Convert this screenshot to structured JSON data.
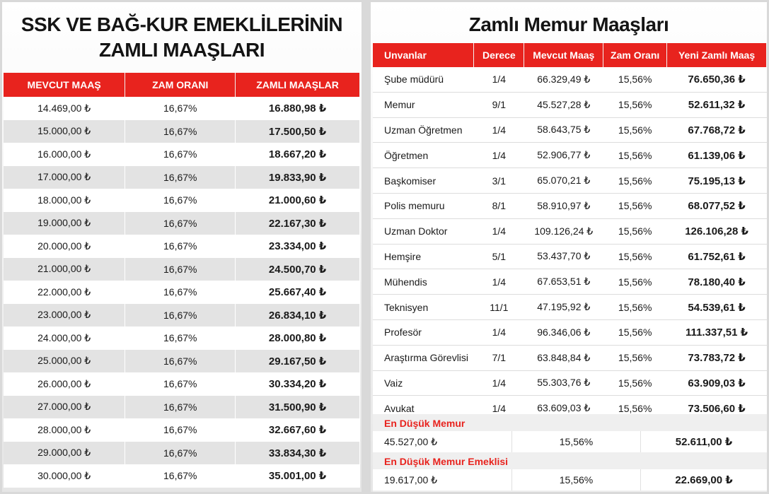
{
  "left": {
    "title_line1": "SSK VE BAĞ-KUR EMEKLİLERİNİN",
    "title_line2": "ZAMLI MAAŞLARI",
    "headers": [
      "MEVCUT MAAŞ",
      "ZAM ORANI",
      "ZAMLI MAAŞLAR"
    ],
    "rows": [
      [
        "14.469,00 ₺",
        "16,67%",
        "16.880,98 ₺"
      ],
      [
        "15.000,00 ₺",
        "16,67%",
        "17.500,50 ₺"
      ],
      [
        "16.000,00 ₺",
        "16,67%",
        "18.667,20 ₺"
      ],
      [
        "17.000,00 ₺",
        "16,67%",
        "19.833,90 ₺"
      ],
      [
        "18.000,00 ₺",
        "16,67%",
        "21.000,60 ₺"
      ],
      [
        "19.000,00 ₺",
        "16,67%",
        "22.167,30 ₺"
      ],
      [
        "20.000,00 ₺",
        "16,67%",
        "23.334,00 ₺"
      ],
      [
        "21.000,00 ₺",
        "16,67%",
        "24.500,70 ₺"
      ],
      [
        "22.000,00 ₺",
        "16,67%",
        "25.667,40 ₺"
      ],
      [
        "23.000,00 ₺",
        "16,67%",
        "26.834,10 ₺"
      ],
      [
        "24.000,00 ₺",
        "16,67%",
        "28.000,80 ₺"
      ],
      [
        "25.000,00 ₺",
        "16,67%",
        "29.167,50 ₺"
      ],
      [
        "26.000,00 ₺",
        "16,67%",
        "30.334,20 ₺"
      ],
      [
        "27.000,00 ₺",
        "16,67%",
        "31.500,90 ₺"
      ],
      [
        "28.000,00 ₺",
        "16,67%",
        "32.667,60 ₺"
      ],
      [
        "29.000,00 ₺",
        "16,67%",
        "33.834,30 ₺"
      ],
      [
        "30.000,00 ₺",
        "16,67%",
        "35.001,00 ₺"
      ]
    ]
  },
  "right": {
    "title": "Zamlı Memur Maaşları",
    "headers": [
      "Unvanlar",
      "Derece",
      "Mevcut Maaş",
      "Zam Oranı",
      "Yeni Zamlı Maaş"
    ],
    "rows": [
      [
        "Şube müdürü",
        "1/4",
        "66.329,49 ₺",
        "15,56%",
        "76.650,36 ₺"
      ],
      [
        "Memur",
        "9/1",
        "45.527,28 ₺",
        "15,56%",
        "52.611,32 ₺"
      ],
      [
        "Uzman Öğretmen",
        "1/4",
        "58.643,75 ₺",
        "15,56%",
        "67.768,72 ₺"
      ],
      [
        "Öğretmen",
        "1/4",
        "52.906,77 ₺",
        "15,56%",
        "61.139,06 ₺"
      ],
      [
        "Başkomiser",
        "3/1",
        "65.070,21 ₺",
        "15,56%",
        "75.195,13 ₺"
      ],
      [
        "Polis memuru",
        "8/1",
        "58.910,97 ₺",
        "15,56%",
        "68.077,52 ₺"
      ],
      [
        "Uzman Doktor",
        "1/4",
        "109.126,24 ₺",
        "15,56%",
        "126.106,28 ₺"
      ],
      [
        "Hemşire",
        "5/1",
        "53.437,70 ₺",
        "15,56%",
        "61.752,61 ₺"
      ],
      [
        "Mühendis",
        "1/4",
        "67.653,51 ₺",
        "15,56%",
        "78.180,40 ₺"
      ],
      [
        "Teknisyen",
        "11/1",
        "47.195,92 ₺",
        "15,56%",
        "54.539,61 ₺"
      ],
      [
        "Profesör",
        "1/4",
        "96.346,06 ₺",
        "15,56%",
        "111.337,51 ₺"
      ],
      [
        "Araştırma Görevlisi",
        "7/1",
        "63.848,84 ₺",
        "15,56%",
        "73.783,72 ₺"
      ],
      [
        "Vaiz",
        "1/4",
        "55.303,76 ₺",
        "15,56%",
        "63.909,03 ₺"
      ],
      [
        "Avukat",
        "1/4",
        "63.609,03 ₺",
        "15,56%",
        "73.506,60 ₺"
      ]
    ],
    "lowest_memur": {
      "label": "En Düşük Memur",
      "current": "45.527,00 ₺",
      "rate": "15,56%",
      "new": "52.611,00 ₺"
    },
    "lowest_retired": {
      "label": "En Düşük Memur Emeklisi",
      "current": "19.617,00 ₺",
      "rate": "15,56%",
      "new": "22.669,00 ₺"
    }
  },
  "colors": {
    "header_red": "#e8231e",
    "stripe_gray": "#e3e3e3"
  }
}
